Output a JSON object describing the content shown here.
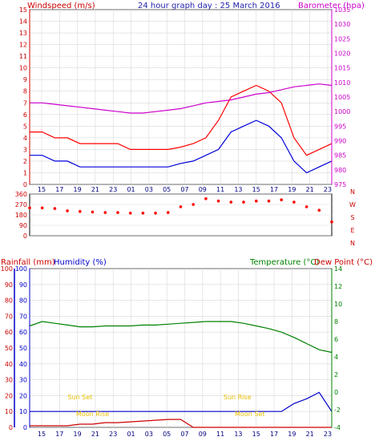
{
  "colors": {
    "wind_avg": "#0000dd",
    "wind_gust": "#ff0000",
    "barometer": "#cc00cc",
    "direction": "#ff0000",
    "rain_axis": "#0000cc",
    "humidity_axis": "#0000cc",
    "rain": "#cc0000",
    "humidity": "#0000cc",
    "temperature": "#008000",
    "temp_axis": "#008000",
    "sun": "#e8c000",
    "moon": "#e8c000"
  },
  "chart_data": [
    {
      "type": "line",
      "title": "24 hour graph day : 25 March 2016",
      "ylabel_left": "Windspeed (m/s)",
      "ylabel_right": "Barometer (hpa)",
      "x_ticks": [
        "15",
        "17",
        "19",
        "21",
        "23",
        "01",
        "03",
        "05",
        "07",
        "09",
        "11",
        "13",
        "15",
        "17",
        "19",
        "21",
        "23"
      ],
      "ylim_left": [
        0,
        15
      ],
      "ylim_right": [
        975,
        1035
      ],
      "y_ticks_left": [
        "0",
        "1",
        "2",
        "3",
        "4",
        "5",
        "6",
        "7",
        "8",
        "9",
        "10",
        "11",
        "12",
        "13",
        "14",
        "15"
      ],
      "y_ticks_right": [
        "975",
        "980",
        "985",
        "990",
        "995",
        "1000",
        "1005",
        "1010",
        "1015",
        "1020",
        "1025",
        "1030",
        "1035"
      ],
      "x_hours": [
        0,
        1,
        2,
        3,
        4,
        5,
        6,
        7,
        8,
        9,
        10,
        11,
        12,
        13,
        14,
        15,
        16,
        17,
        18,
        19,
        20,
        21,
        22,
        23,
        24
      ],
      "series": [
        {
          "key": "gust",
          "values": [
            4.5,
            4.5,
            4,
            4,
            3.5,
            3.5,
            3.5,
            3.5,
            3,
            3,
            3,
            3,
            3.2,
            3.5,
            4,
            5.5,
            7.5,
            8,
            8.5,
            8,
            7,
            4,
            2.5,
            3,
            3.5
          ]
        },
        {
          "key": "avg",
          "values": [
            2.5,
            2.5,
            2,
            2,
            1.5,
            1.5,
            1.5,
            1.5,
            1.5,
            1.5,
            1.5,
            1.5,
            1.8,
            2,
            2.5,
            3,
            4.5,
            5,
            5.5,
            5,
            4,
            2,
            1,
            1.5,
            2
          ]
        },
        {
          "key": "barometer",
          "values": [
            1003,
            1003,
            1002.5,
            1002,
            1001.5,
            1001,
            1000.5,
            1000,
            999.5,
            999.5,
            1000,
            1000.5,
            1001,
            1002,
            1003,
            1003.5,
            1004,
            1005,
            1006,
            1006.5,
            1007.5,
            1008.5,
            1009,
            1009.5,
            1009
          ]
        }
      ]
    },
    {
      "type": "scatter",
      "ylabel_right": [
        "N",
        "W",
        "S",
        "E",
        "N"
      ],
      "ylim": [
        0,
        360
      ],
      "y_ticks": [
        "0",
        "90",
        "180",
        "270",
        "360"
      ],
      "x_hours": [
        0,
        1,
        2,
        3,
        4,
        5,
        6,
        7,
        8,
        9,
        10,
        11,
        12,
        13,
        14,
        15,
        16,
        17,
        18,
        19,
        20,
        21,
        22,
        23,
        24
      ],
      "values": [
        240,
        240,
        235,
        215,
        210,
        205,
        200,
        200,
        195,
        195,
        195,
        200,
        250,
        270,
        320,
        300,
        290,
        290,
        300,
        300,
        310,
        290,
        250,
        220,
        120
      ]
    },
    {
      "type": "line",
      "ylabel_left_1": "Rainfall (mm)",
      "ylabel_left_2": "Humidity (%)",
      "ylabel_right_1": "Temperature (°C)",
      "ylabel_right_2": "Dew Point (°C)",
      "x_ticks": [
        "15",
        "17",
        "19",
        "21",
        "23",
        "01",
        "03",
        "05",
        "07",
        "09",
        "11",
        "13",
        "15",
        "17",
        "19",
        "21",
        "23"
      ],
      "ylim_humidity": [
        0,
        100
      ],
      "y_ticks_humidity": [
        "0",
        "10",
        "20",
        "30",
        "40",
        "50",
        "60",
        "70",
        "80",
        "90",
        "100"
      ],
      "ylim_rain": [
        0,
        100
      ],
      "y_ticks_rain": [
        "0",
        "10",
        "20",
        "30",
        "40",
        "50",
        "60",
        "70",
        "80",
        "90",
        "100"
      ],
      "ylim_temp": [
        -4,
        14
      ],
      "y_ticks_temp": [
        "-4",
        "-2",
        "0",
        "2",
        "4",
        "6",
        "8",
        "10",
        "12",
        "14"
      ],
      "x_hours": [
        0,
        1,
        2,
        3,
        4,
        5,
        6,
        7,
        8,
        9,
        10,
        11,
        12,
        13,
        14,
        15,
        16,
        17,
        18,
        19,
        20,
        21,
        22,
        23,
        24
      ],
      "series": [
        {
          "key": "temperature",
          "values": [
            7.5,
            8,
            7.8,
            7.6,
            7.4,
            7.4,
            7.5,
            7.5,
            7.5,
            7.6,
            7.6,
            7.7,
            7.8,
            7.9,
            8,
            8,
            8,
            7.8,
            7.5,
            7.2,
            6.8,
            6.2,
            5.5,
            4.8,
            4.5
          ]
        },
        {
          "key": "humidity",
          "values": [
            10,
            10,
            10,
            10,
            10,
            10,
            10,
            10,
            10,
            10,
            10,
            10,
            10,
            10,
            10,
            10,
            10,
            10,
            10,
            10,
            10,
            15,
            18,
            22,
            10
          ]
        },
        {
          "key": "rain",
          "values": [
            1,
            1,
            1,
            1,
            2,
            2,
            3,
            3,
            3.5,
            4,
            4.5,
            5,
            5,
            0,
            0,
            0,
            0,
            0,
            0,
            0,
            0,
            0,
            0,
            0,
            0
          ]
        }
      ],
      "annotations": [
        {
          "label": "Sun Set",
          "x_hour": 4
        },
        {
          "label": "Sun Rise",
          "x_hour": 16.5
        },
        {
          "label": "Moon Rise",
          "x_hour": 5
        },
        {
          "label": "Moon Set",
          "x_hour": 17.5
        },
        {
          "label": "Sun Set",
          "x_hour": 28.5
        },
        {
          "label": "Moon Rise",
          "x_hour": 33.5
        }
      ]
    }
  ]
}
